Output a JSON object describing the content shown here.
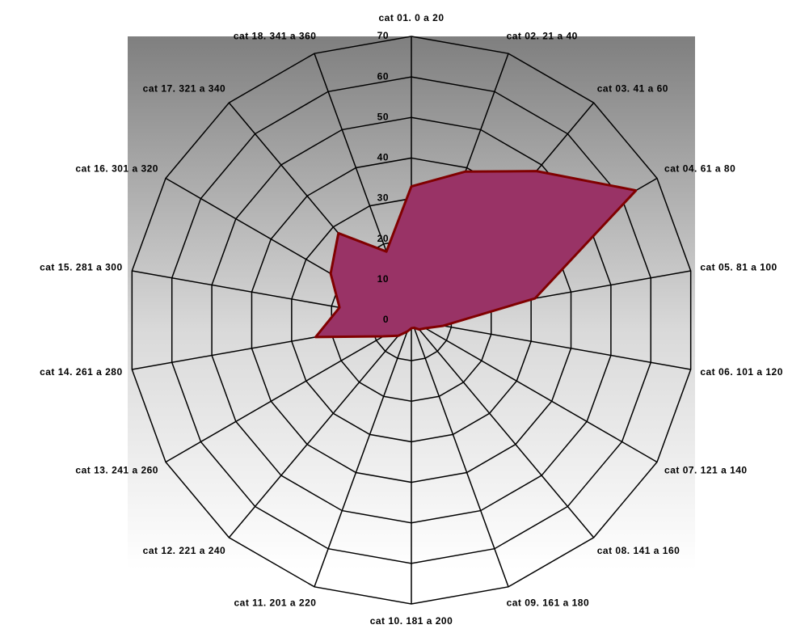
{
  "chart_data": {
    "type": "radar",
    "categories": [
      "cat 01. 0 a 20",
      "cat 02. 21 a 40",
      "cat 03. 41 a 60",
      "cat 04. 61 a 80",
      "cat 05. 81 a 100",
      "cat 06. 101 a 120",
      "cat 07. 121 a 140",
      "cat 08. 141 a 160",
      "cat 09. 161 a 180",
      "cat 10. 181 a 200",
      "cat 11. 201 a 220",
      "cat 12. 221 a 240",
      "cat 13. 241 a 260",
      "cat 14. 261 a 280",
      "cat 15. 281 a 300",
      "cat 16. 301 a 320",
      "cat 17. 321 a 340",
      "cat 18. 341 a 360"
    ],
    "values": [
      33,
      39,
      48,
      64,
      31,
      8,
      4,
      3,
      2,
      2,
      3,
      5,
      8,
      24,
      18,
      23,
      28,
      18
    ],
    "color": "#993366",
    "line_color": "#800000",
    "ylim": [
      0,
      70
    ],
    "yticks": [
      0,
      10,
      20,
      30,
      40,
      50,
      60,
      70
    ],
    "grid": true
  }
}
